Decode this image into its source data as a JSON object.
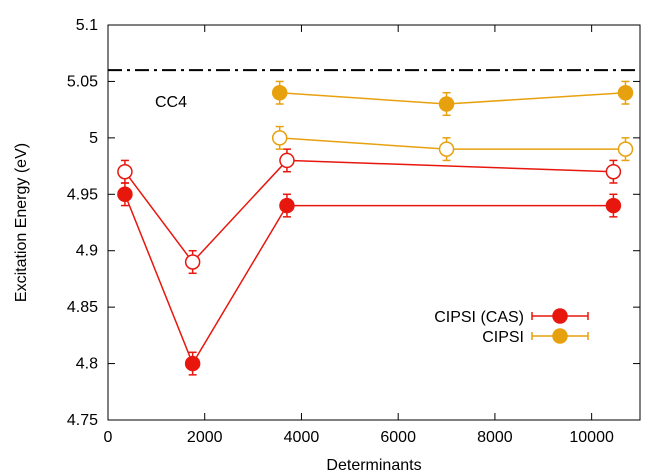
{
  "chart_data": {
    "type": "scatter",
    "xlabel": "Determinants",
    "ylabel": "Excitation Energy (eV)",
    "xlim": [
      0,
      11000
    ],
    "ylim": [
      4.75,
      5.1
    ],
    "x_ticks": [
      "0",
      "2000",
      "4000",
      "6000",
      "8000",
      "10000"
    ],
    "y_ticks": [
      "4.75",
      "4.8",
      "4.85",
      "4.9",
      "4.95",
      "5",
      "5.05",
      "5.1"
    ],
    "grid": false,
    "legend_position": "bottom-right",
    "reference_line": {
      "label": "CC4",
      "y": 5.06,
      "style": "dash-dot",
      "color": "#000000"
    },
    "series": [
      {
        "name": "CIPSI (CAS)",
        "color": "#e8170e",
        "marker": "filled-circle",
        "points": [
          {
            "x": 350,
            "y": 4.95,
            "err": 0.01
          },
          {
            "x": 1750,
            "y": 4.8,
            "err": 0.01
          },
          {
            "x": 3700,
            "y": 4.94,
            "err": 0.01
          },
          {
            "x": 10450,
            "y": 4.94,
            "err": 0.01
          }
        ]
      },
      {
        "color": "#e8170e",
        "marker": "open-circle",
        "points": [
          {
            "x": 350,
            "y": 4.97,
            "err": 0.01
          },
          {
            "x": 1750,
            "y": 4.89,
            "err": 0.01
          },
          {
            "x": 3700,
            "y": 4.98,
            "err": 0.01
          },
          {
            "x": 10450,
            "y": 4.97,
            "err": 0.01
          }
        ]
      },
      {
        "name": "CIPSI",
        "color": "#e8a10e",
        "marker": "filled-circle",
        "points": [
          {
            "x": 3550,
            "y": 5.04,
            "err": 0.01
          },
          {
            "x": 7000,
            "y": 5.03,
            "err": 0.01
          },
          {
            "x": 10700,
            "y": 5.04,
            "err": 0.01
          }
        ]
      },
      {
        "color": "#e8a10e",
        "marker": "open-circle",
        "points": [
          {
            "x": 3550,
            "y": 5.0,
            "err": 0.01
          },
          {
            "x": 7000,
            "y": 4.99,
            "err": 0.01
          },
          {
            "x": 10700,
            "y": 4.99,
            "err": 0.01
          }
        ]
      }
    ]
  }
}
